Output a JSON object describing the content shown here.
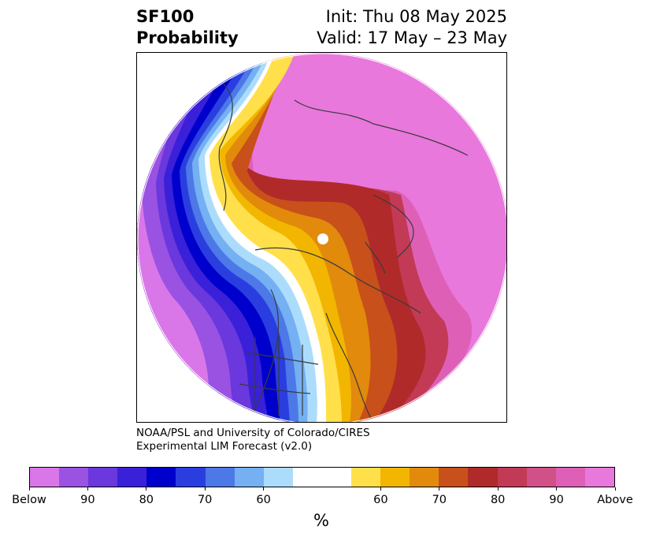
{
  "title": {
    "line1": "SF100",
    "line2": "Probability",
    "init": "Init: Thu 08 May 2025",
    "valid": "Valid: 17 May – 23 May"
  },
  "credit": {
    "line1": "NOAA/PSL and University of Colorado/CIRES",
    "line2": "Experimental LIM Forecast (v2.0)"
  },
  "colorbar": {
    "colors": [
      "#d977e8",
      "#9a52e3",
      "#6a38dc",
      "#3a20d8",
      "#0000cc",
      "#2a3ee0",
      "#4c78e8",
      "#74b0f2",
      "#acdcfb",
      "#ffffff",
      "#ffffff",
      "#ffe04a",
      "#f2b600",
      "#e18a0c",
      "#c8501a",
      "#b12a2a",
      "#c23a56",
      "#d25088",
      "#de60b6",
      "#e878dc"
    ],
    "tick_labels": [
      "Below",
      "90",
      "80",
      "70",
      "60",
      "60",
      "70",
      "80",
      "90",
      "Above"
    ],
    "unit": "%"
  }
}
